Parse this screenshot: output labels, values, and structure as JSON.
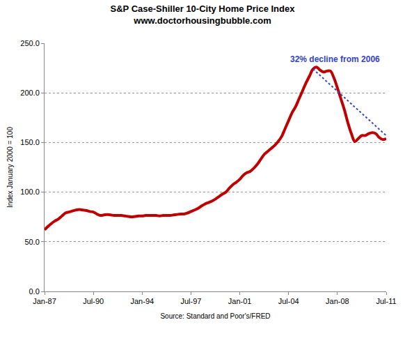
{
  "chart_data": {
    "type": "line",
    "title": "S&P Case-Shiller 10-City Home Price Index",
    "subtitle": "www.doctorhousingbubble.com",
    "x_label": "Source: Standard and Poor's/FRED",
    "y_label": "Index January 2000 = 100",
    "annotation": "32% decline from 2006",
    "categories": [
      "Jan-87",
      null,
      null,
      null,
      null,
      null,
      null,
      null,
      null,
      null,
      null,
      null,
      null,
      null,
      "Jul-90",
      null,
      null,
      null,
      null,
      null,
      null,
      null,
      null,
      null,
      null,
      null,
      null,
      null,
      "Jan-94",
      null,
      null,
      null,
      null,
      null,
      null,
      null,
      null,
      null,
      null,
      null,
      null,
      null,
      "Jul-97",
      null,
      null,
      null,
      null,
      null,
      null,
      null,
      null,
      null,
      null,
      null,
      null,
      null,
      "Jan-01",
      null,
      null,
      null,
      null,
      null,
      null,
      null,
      null,
      null,
      null,
      null,
      null,
      null,
      "Jul-04",
      null,
      null,
      null,
      null,
      null,
      null,
      null,
      null,
      null,
      null,
      null,
      null,
      null,
      "Jan-08",
      null,
      null,
      null,
      null,
      null,
      null,
      null,
      null,
      null,
      null,
      null,
      null,
      null,
      "Jul-11"
    ],
    "series": [
      {
        "color": "#c00000",
        "line_style": "solid",
        "values": [
          62,
          65.5,
          68.5,
          71,
          73,
          76,
          79,
          80,
          81,
          82,
          82.5,
          82,
          81.5,
          80.5,
          80,
          78,
          76.5,
          77,
          77.5,
          77,
          76.5,
          76.5,
          76.5,
          76,
          75.5,
          75,
          75.5,
          76,
          76,
          76.5,
          76.5,
          76.5,
          76.5,
          76,
          76.5,
          76.5,
          76.5,
          77,
          77.5,
          78,
          78,
          79,
          80.5,
          82,
          83.5,
          86,
          88,
          89.5,
          91,
          93,
          95.5,
          98,
          100,
          104,
          107.5,
          110,
          113,
          117,
          119.5,
          121,
          124,
          128,
          133,
          138,
          141,
          144,
          147,
          151,
          156,
          164,
          172,
          180,
          186,
          194,
          202,
          210,
          217,
          224,
          226,
          223,
          221,
          222,
          222,
          215,
          205,
          194,
          183,
          170,
          159,
          151,
          154,
          157,
          157,
          159,
          160,
          159,
          155,
          153,
          154
        ]
      },
      {
        "color": "#3344cc",
        "line_style": "dot",
        "values": [
          null,
          null,
          null,
          null,
          null,
          null,
          null,
          null,
          null,
          null,
          null,
          null,
          null,
          null,
          null,
          null,
          null,
          null,
          null,
          null,
          null,
          null,
          null,
          null,
          null,
          null,
          null,
          null,
          null,
          null,
          null,
          null,
          null,
          null,
          null,
          null,
          null,
          null,
          null,
          null,
          null,
          null,
          null,
          null,
          null,
          null,
          null,
          null,
          null,
          null,
          null,
          null,
          null,
          null,
          null,
          null,
          null,
          null,
          null,
          null,
          null,
          null,
          null,
          null,
          null,
          null,
          null,
          null,
          null,
          null,
          null,
          null,
          null,
          null,
          null,
          null,
          null,
          224,
          null,
          null,
          null,
          null,
          null,
          null,
          null,
          null,
          null,
          null,
          null,
          null,
          null,
          null,
          null,
          null,
          null,
          null,
          null,
          null,
          157
        ]
      }
    ],
    "ylim": [
      0,
      250
    ],
    "yticks": [
      {
        "value": 0,
        "label": "0.0"
      },
      {
        "value": 50,
        "label": "50.0"
      },
      {
        "value": 100,
        "label": "100.0"
      },
      {
        "value": 150,
        "label": "150.0"
      },
      {
        "value": 200,
        "label": "200.0"
      },
      {
        "value": 250,
        "label": "250.0"
      }
    ],
    "grid": true
  }
}
